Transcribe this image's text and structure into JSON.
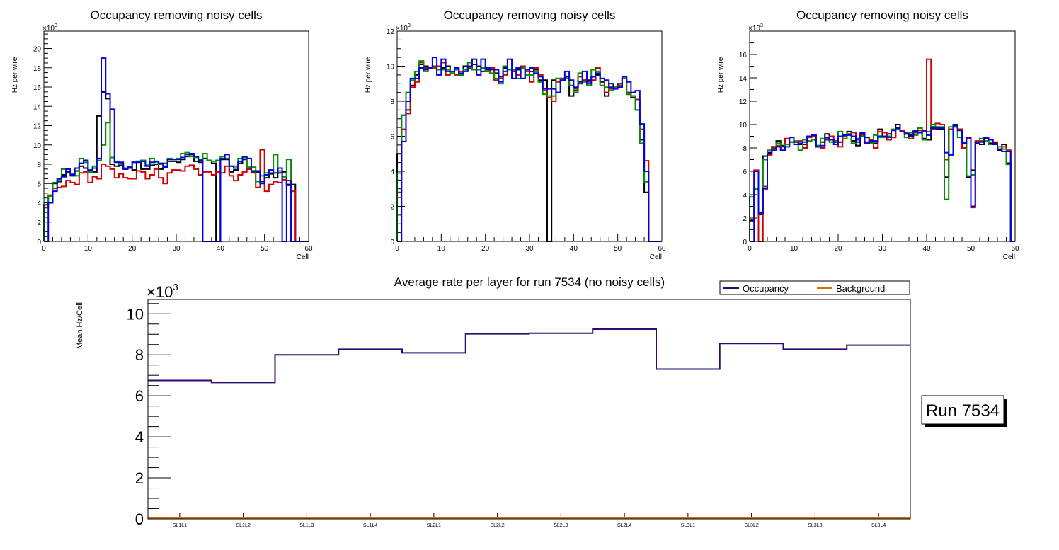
{
  "chart_data": [
    {
      "type": "line",
      "style": "step-histogram",
      "title": "Occupancy removing noisy cells",
      "xlabel": "Cell",
      "ylabel": "Hz per wire",
      "y_multiplier": "×10",
      "y_multiplier_exp": "3",
      "xlim": [
        0,
        60
      ],
      "ylim": [
        0,
        21.8
      ],
      "x_ticks": [
        "0",
        "10",
        "20",
        "30",
        "40",
        "50",
        "60"
      ],
      "y_ticks": [
        "0",
        "2",
        "4",
        "6",
        "8",
        "10",
        "12",
        "14",
        "16",
        "18",
        "20"
      ],
      "series": [
        {
          "name": "black",
          "color": "#000000",
          "values": [
            3.8,
            4,
            6,
            6.2,
            6.9,
            7.2,
            6.8,
            7.3,
            7.8,
            7.6,
            7.2,
            7.2,
            13,
            15.5,
            14.8,
            8,
            7.8,
            7.9,
            7.5,
            7.6,
            7.4,
            8.3,
            7.5,
            7.5,
            7.9,
            8,
            7.5,
            7.8,
            8.3,
            8.3,
            8.2,
            8.5,
            8.8,
            9,
            8.3,
            8.2,
            8.6,
            8.4,
            8.1,
            0,
            8.5,
            8.5,
            7.2,
            7.4,
            8.1,
            8.5,
            7.5,
            7.2,
            7.2,
            6.2,
            6.6,
            7,
            6.6,
            7.1,
            7.2,
            5.9,
            5.9,
            0,
            0,
            0
          ]
        },
        {
          "name": "red",
          "color": "#d00000",
          "values": [
            3.5,
            4.8,
            5.5,
            5.6,
            5.7,
            6.3,
            6.1,
            5.9,
            7.1,
            7.2,
            6.1,
            6.7,
            6.5,
            8,
            7.8,
            7.5,
            6.6,
            7,
            6.6,
            6.5,
            6.5,
            7.3,
            7.2,
            6.5,
            6.9,
            7.5,
            6.6,
            6,
            7.1,
            7.4,
            7.4,
            7.3,
            7.8,
            7.9,
            7.5,
            6.9,
            7.2,
            7.2,
            6.9,
            7.2,
            7.1,
            7.8,
            6.8,
            6.3,
            6.9,
            7.2,
            7.5,
            7.1,
            5.6,
            9.5,
            5.2,
            5.9,
            6.2,
            6.1,
            6.4,
            5.8,
            5.2,
            0,
            0,
            0
          ]
        },
        {
          "name": "green",
          "color": "#009000",
          "values": [
            3.8,
            4.7,
            6.1,
            6.4,
            7.5,
            7.5,
            7,
            6.8,
            8.6,
            8.2,
            7.2,
            7.8,
            8.4,
            10,
            12.3,
            8.7,
            8.3,
            8.1,
            7.6,
            7.7,
            8.2,
            8.3,
            8.4,
            7.9,
            8.6,
            8.2,
            8,
            8.1,
            8.6,
            8.5,
            8.6,
            9.1,
            9.2,
            8.8,
            8.7,
            8.5,
            9.1,
            8.4,
            8.3,
            8.4,
            8.8,
            8.6,
            7.8,
            7.8,
            8.6,
            8.7,
            7.7,
            7.7,
            6.2,
            6.8,
            7.1,
            7.1,
            9,
            7.3,
            6.7,
            8.5,
            0,
            0,
            0,
            0
          ]
        },
        {
          "name": "blue",
          "color": "#0000e0",
          "values": [
            0,
            4,
            5.2,
            6.5,
            6.7,
            7.5,
            6.9,
            7.6,
            8.1,
            8.4,
            7.4,
            7.6,
            8.6,
            19,
            15.3,
            13.7,
            8.2,
            8.2,
            7.5,
            7.7,
            8.2,
            8.2,
            8.3,
            7.8,
            8.2,
            8.3,
            8.1,
            7.7,
            8.5,
            8.5,
            8.5,
            8.7,
            9,
            9.1,
            8.8,
            8.4,
            0,
            0,
            0,
            0,
            8.6,
            9,
            7.8,
            7.6,
            8.3,
            8.8,
            8.6,
            7.3,
            7.3,
            6,
            6.9,
            7.4,
            7.1,
            7.6,
            0,
            6.3,
            0,
            0,
            0,
            0
          ]
        }
      ]
    },
    {
      "type": "line",
      "style": "step-histogram",
      "title": "Occupancy removing noisy cells",
      "xlabel": "Cell",
      "ylabel": "Hz per wire",
      "y_multiplier": "×10",
      "y_multiplier_exp": "3",
      "xlim": [
        0,
        60
      ],
      "ylim": [
        0,
        12
      ],
      "x_ticks": [
        "0",
        "10",
        "20",
        "30",
        "40",
        "50",
        "60"
      ],
      "y_ticks": [
        "0",
        "2",
        "4",
        "6",
        "8",
        "10",
        "12"
      ],
      "series": [
        {
          "name": "black",
          "color": "#000000",
          "values": [
            5,
            7.2,
            7.5,
            8.9,
            9.5,
            10.1,
            10,
            9.9,
            10,
            10,
            9.9,
            10,
            9.6,
            9.8,
            9.5,
            10,
            10,
            10.1,
            10,
            9.7,
            9.8,
            9.9,
            9.6,
            9.4,
            9.9,
            9.8,
            9.7,
            9.8,
            9.3,
            9.8,
            9.7,
            9.8,
            9.2,
            9.2,
            0,
            9.2,
            9.3,
            9.3,
            9.4,
            8.3,
            8.6,
            9.1,
            9.2,
            9.2,
            9.4,
            9.5,
            9.1,
            8.3,
            9,
            8.8,
            9,
            9.3,
            8.4,
            8.2,
            7.5,
            5.8,
            2.8,
            0,
            0,
            0
          ]
        },
        {
          "name": "red",
          "color": "#d00000",
          "values": [
            2.8,
            6.4,
            7.3,
            8.8,
            9.1,
            10.2,
            9.9,
            9.9,
            10,
            10,
            10.2,
            9.5,
            9.6,
            9.5,
            9.7,
            9.8,
            9.9,
            9.8,
            9.8,
            9.9,
            9.7,
            9.9,
            9.2,
            9.3,
            9.5,
            9.8,
            9.7,
            9.5,
            10,
            9.7,
            9.1,
            9.9,
            9.5,
            8.6,
            8.2,
            8,
            9.1,
            9.3,
            9.3,
            8.9,
            8.7,
            9.4,
            9.2,
            9.1,
            9.2,
            9.9,
            9.3,
            8.5,
            8.7,
            8.8,
            8.9,
            9.3,
            8.5,
            8.3,
            8.1,
            6.4,
            4.6,
            0,
            0,
            0
          ]
        },
        {
          "name": "green",
          "color": "#009000",
          "values": [
            3.9,
            7.2,
            8.5,
            9.2,
            9.7,
            10.3,
            9.7,
            9.9,
            9.9,
            9.8,
            9.8,
            9.8,
            9.6,
            9.8,
            9.5,
            9.8,
            10.2,
            9.8,
            9.8,
            9.9,
            9.7,
            9.6,
            9.3,
            9,
            10,
            9.8,
            9.8,
            9.3,
            9.9,
            9.5,
            9.5,
            9.7,
            9.1,
            8.4,
            8.3,
            8.3,
            9.3,
            9.2,
            9.3,
            8.9,
            8.5,
            9.6,
            9.1,
            8.9,
            9.8,
            9.7,
            8.9,
            8.8,
            8.6,
            8.8,
            8.8,
            9.3,
            8.4,
            8.3,
            7.5,
            5.6,
            3.4,
            0,
            0,
            0
          ]
        },
        {
          "name": "blue",
          "color": "#0000e0",
          "values": [
            0,
            5.7,
            8,
            9.3,
            9.3,
            9.9,
            9.8,
            9.9,
            10.5,
            9.5,
            10.4,
            9.7,
            9.7,
            9.9,
            9.6,
            9.7,
            10,
            10.4,
            9.5,
            10.4,
            9.9,
            9.8,
            9.8,
            9.1,
            9.7,
            10.4,
            9.3,
            9.9,
            9.3,
            9.8,
            9.9,
            9.6,
            9.4,
            8.7,
            8.7,
            8.7,
            8.5,
            9.2,
            9.7,
            9.2,
            8.8,
            9,
            9.7,
            9,
            9.4,
            9.6,
            9.3,
            9.2,
            8.8,
            8.7,
            8.8,
            9.4,
            9.1,
            8.5,
            8.6,
            6.7,
            4,
            0,
            0,
            0
          ]
        }
      ]
    },
    {
      "type": "line",
      "style": "step-histogram",
      "title": "Occupancy removing noisy cells",
      "xlabel": "Cell",
      "ylabel": "Hz per wire",
      "y_multiplier": "×10",
      "y_multiplier_exp": "3",
      "xlim": [
        0,
        60
      ],
      "ylim": [
        0,
        18
      ],
      "x_ticks": [
        "0",
        "10",
        "20",
        "30",
        "40",
        "50",
        "60"
      ],
      "y_ticks": [
        "0",
        "2",
        "4",
        "6",
        "8",
        "10",
        "12",
        "14",
        "16"
      ],
      "series": [
        {
          "name": "black",
          "color": "#000000",
          "values": [
            1.8,
            4.5,
            2.3,
            7.3,
            7.6,
            8.1,
            8.6,
            8.2,
            8.3,
            8.5,
            8.5,
            8.3,
            8.3,
            9,
            9.1,
            8.1,
            8.5,
            9.2,
            8.7,
            8.5,
            8.5,
            9.1,
            9.4,
            8.6,
            8.2,
            9.2,
            8.9,
            8.5,
            8.4,
            9.6,
            9,
            9.2,
            8.9,
            10,
            9.5,
            9.2,
            9.1,
            9.4,
            9.5,
            8.8,
            8.7,
            9.8,
            9.6,
            9.6,
            5.5,
            9.6,
            9.9,
            9.6,
            8.4,
            5.5,
            6.1,
            8.5,
            8.3,
            8.8,
            8.4,
            8.4,
            7.8,
            8.3,
            6.7,
            0
          ]
        },
        {
          "name": "red",
          "color": "#d00000",
          "values": [
            1.7,
            6.1,
            0,
            4.7,
            7.4,
            8,
            8.2,
            8.1,
            8.8,
            8.9,
            8.5,
            8.6,
            8,
            8.9,
            9,
            8.2,
            8,
            8.7,
            9,
            8.6,
            8.1,
            9,
            9.2,
            9.3,
            8.7,
            9.1,
            8.5,
            8.7,
            8,
            9.4,
            9.3,
            8.7,
            8.9,
            9.6,
            9.5,
            9.3,
            8.8,
            9.3,
            9.5,
            9.4,
            15.6,
            9.6,
            10.1,
            10,
            7,
            9.6,
            9.8,
            9.6,
            8,
            8.8,
            2.9,
            8.6,
            8.6,
            8.9,
            8.3,
            8.5,
            7.9,
            8.1,
            7.8,
            0
          ]
        },
        {
          "name": "green",
          "color": "#009000",
          "values": [
            3.8,
            4.5,
            2.5,
            7,
            7.8,
            7.8,
            8.4,
            7.8,
            8.3,
            8.5,
            8.6,
            7.8,
            8.7,
            8.6,
            8.7,
            8.2,
            8.8,
            8.8,
            8.5,
            8.6,
            9.4,
            8.8,
            9.2,
            8.4,
            8.8,
            9,
            8.4,
            8.4,
            9.1,
            8.9,
            8.9,
            9,
            9.6,
            9.6,
            9.4,
            8.9,
            9.3,
            9.1,
            9.7,
            8.7,
            9.4,
            10,
            9.8,
            9.8,
            3.6,
            9.8,
            9.8,
            8.9,
            8.5,
            5.6,
            5.7,
            8.4,
            8.8,
            8.6,
            8.3,
            8.3,
            8.1,
            7.9,
            6.6,
            0
          ]
        },
        {
          "name": "blue",
          "color": "#0000e0",
          "values": [
            0,
            6,
            2.4,
            4.5,
            7.5,
            7.8,
            8.1,
            7.8,
            8.1,
            8.9,
            8.3,
            8.4,
            8.5,
            9,
            9.1,
            8.1,
            8.2,
            8.9,
            8.7,
            8.3,
            9,
            9.1,
            9.1,
            9,
            8.5,
            9.3,
            8.4,
            8.6,
            8.6,
            9,
            9,
            8.9,
            9.5,
            9.7,
            9.4,
            9.2,
            9,
            9.5,
            9.3,
            9.5,
            9.1,
            9.7,
            9.7,
            9.7,
            7.6,
            7.4,
            10,
            9.5,
            8.4,
            8.9,
            3,
            8.4,
            8.5,
            8.9,
            8.7,
            8.3,
            7.9,
            7.7,
            7.7,
            0
          ]
        }
      ]
    },
    {
      "type": "line",
      "style": "step-histogram",
      "title": "Average rate per layer for run 7534 (no noisy cells)",
      "xlabel": "",
      "ylabel": "Mean Hz/Cell",
      "y_multiplier": "×10",
      "y_multiplier_exp": "3",
      "categories": [
        "SL1L1",
        "SL1L2",
        "SL1L3",
        "SL1L4",
        "SL2L1",
        "SL2L2",
        "SL2L3",
        "SL2L4",
        "SL3L1",
        "SL3L2",
        "SL3L3",
        "SL3L4"
      ],
      "ylim": [
        0,
        10.7
      ],
      "y_ticks": [
        "0",
        "2",
        "4",
        "6",
        "8",
        "10"
      ],
      "legend": {
        "placement": "top-right",
        "entries": [
          "Occupancy",
          "Background"
        ]
      },
      "series": [
        {
          "name": "Occupancy",
          "color": "#2e0a6e",
          "values": [
            6.75,
            6.65,
            8.0,
            8.27,
            8.1,
            9.02,
            9.05,
            9.25,
            7.3,
            8.55,
            8.27,
            8.47
          ]
        },
        {
          "name": "Background",
          "color": "#d0700a",
          "values": [
            0.05,
            0.05,
            0.05,
            0.05,
            0.05,
            0.05,
            0.05,
            0.05,
            0.05,
            0.05,
            0.05,
            0.05
          ]
        }
      ],
      "annotation": "Run 7534"
    }
  ]
}
